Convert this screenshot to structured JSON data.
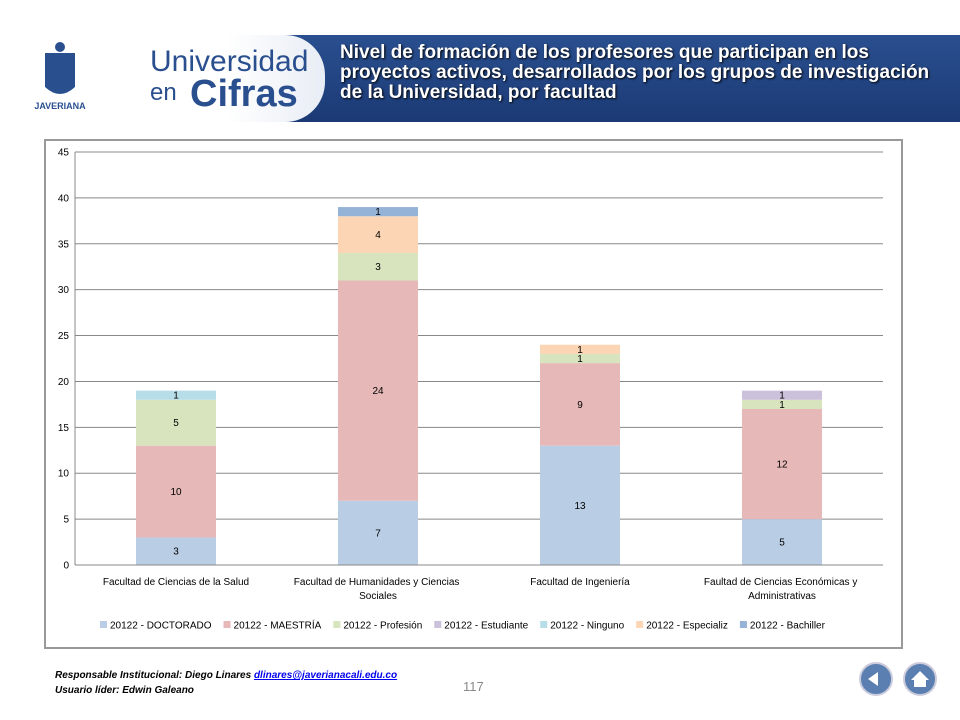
{
  "header": {
    "brand_top": "Universidad",
    "brand_en": "en",
    "brand_cifras": "Cifras",
    "logo_text": "JAVERIANA",
    "title": "Nivel de formación de los profesores que participan en los proyectos activos, desarrollados por los grupos de investigación de la Universidad, por facultad"
  },
  "footer": {
    "responsible": "Responsable Institucional: Diego Linares",
    "email": "dlinares@javerianacali.edu.co",
    "leader": "Usuario líder: Edwin Galeano",
    "page": "117"
  },
  "chart_data": {
    "type": "stacked_bar",
    "categories": [
      "Facultad de Ciencias de la Salud",
      "Facultad de Humanidades y Ciencias Sociales",
      "Facultad de Ingeniería",
      "Faultad de Ciencias Económicas y Administrativas"
    ],
    "series": [
      {
        "name": "20122 - DOCTORADO",
        "color": "#b9cde5",
        "values": [
          3,
          7,
          13,
          5
        ]
      },
      {
        "name": "20122 - MAESTRÍA",
        "color": "#e6b9b8",
        "values": [
          10,
          24,
          9,
          12
        ]
      },
      {
        "name": "20122 - Profesión",
        "color": "#d7e4bd",
        "values": [
          5,
          3,
          1,
          1
        ]
      },
      {
        "name": "20122 - Estudiante",
        "color": "#ccc1da",
        "values": [
          null,
          null,
          null,
          1
        ]
      },
      {
        "name": "20122 - Ninguno",
        "color": "#b7dee8",
        "values": [
          1,
          null,
          null,
          null
        ]
      },
      {
        "name": "20122 - Especializ",
        "color": "#fcd5b5",
        "values": [
          null,
          4,
          1,
          null
        ]
      },
      {
        "name": "20122 - Bachiller",
        "color": "#95b3d7",
        "values": [
          null,
          1,
          null,
          null
        ]
      }
    ],
    "ylim": [
      0,
      45
    ],
    "yticks": [
      0,
      5,
      10,
      15,
      20,
      25,
      30,
      35,
      40,
      45
    ],
    "grid": true,
    "legend": "bottom"
  }
}
